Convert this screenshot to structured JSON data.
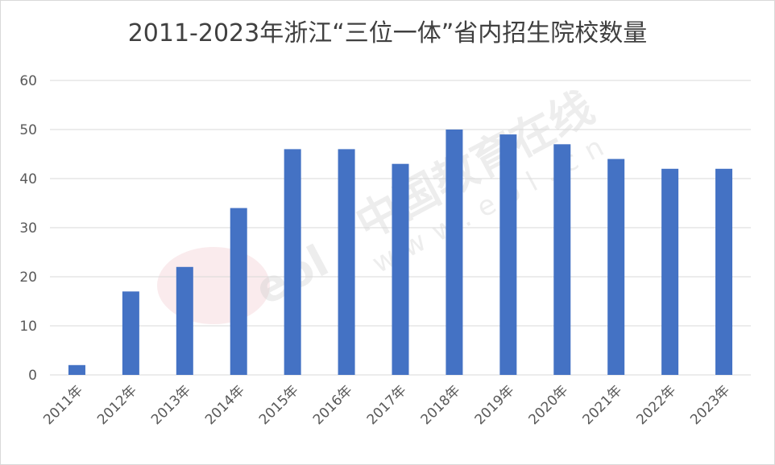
{
  "chart_data": {
    "type": "bar",
    "title": "2011-2023年浙江“三位一体”省内招生院校数量",
    "xlabel": "",
    "ylabel": "",
    "categories": [
      "2011年",
      "2012年",
      "2013年",
      "2014年",
      "2015年",
      "2016年",
      "2017年",
      "2018年",
      "2019年",
      "2020年",
      "2021年",
      "2022年",
      "2023年"
    ],
    "values": [
      2,
      17,
      22,
      34,
      46,
      46,
      43,
      50,
      49,
      47,
      44,
      42,
      42
    ],
    "ylim": [
      0,
      60
    ],
    "yticks": [
      0,
      10,
      20,
      30,
      40,
      50,
      60
    ],
    "grid": true,
    "legend": "none",
    "bar_color": "#4472c4"
  },
  "watermark": {
    "brand": "中国教育在线",
    "site": "www.eol.cn",
    "logo": "eol"
  }
}
